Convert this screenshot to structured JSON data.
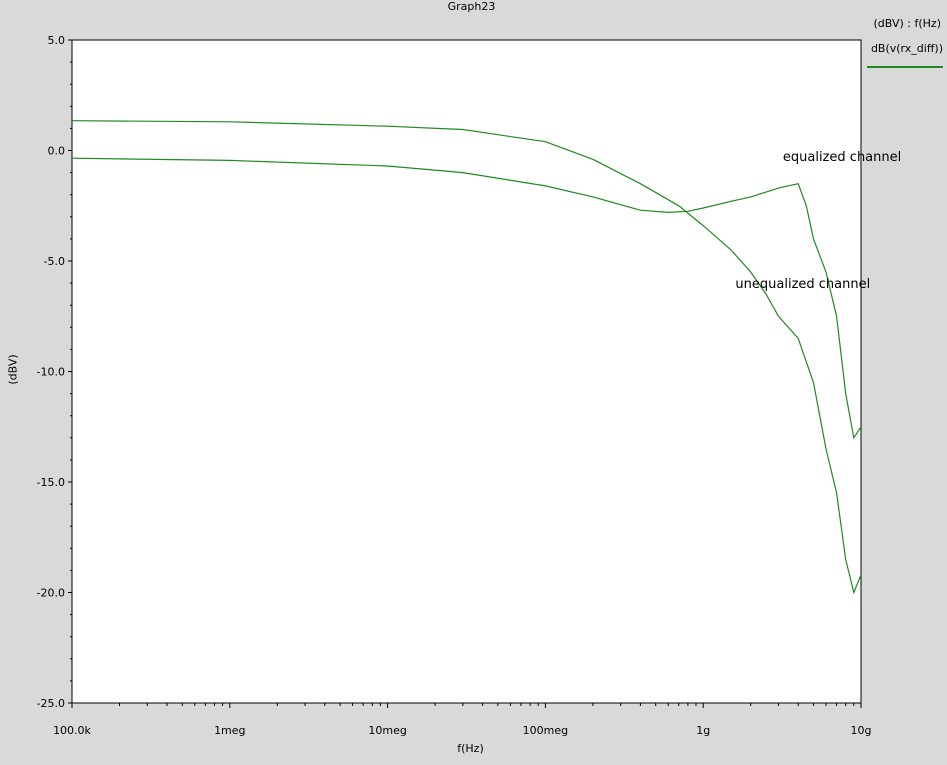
{
  "header": {
    "title": "Graph23"
  },
  "legend": {
    "axis_label": "(dBV) : f(Hz)",
    "item": "dB(v(rx_diff))"
  },
  "colors": {
    "trace": "#1f8a1f",
    "plot_bg": "#ffffff",
    "window_bg": "#d9d9d9"
  },
  "chart_data": {
    "type": "line",
    "title": "Graph23",
    "xlabel": "f(Hz)",
    "ylabel": "(dBV)",
    "x_scale": "log",
    "xlim": [
      100000,
      10000000000
    ],
    "ylim": [
      -25,
      5
    ],
    "x_ticks": [
      {
        "value": 100000,
        "label": "100.0k"
      },
      {
        "value": 1000000,
        "label": "1meg"
      },
      {
        "value": 10000000,
        "label": "10meg"
      },
      {
        "value": 100000000,
        "label": "100meg"
      },
      {
        "value": 1000000000,
        "label": "1g"
      },
      {
        "value": 10000000000,
        "label": "10g"
      }
    ],
    "y_ticks": [
      {
        "value": 5,
        "label": "5.0"
      },
      {
        "value": 0,
        "label": "0.0"
      },
      {
        "value": -5,
        "label": "-5.0"
      },
      {
        "value": -10,
        "label": "-10.0"
      },
      {
        "value": -15,
        "label": "-15.0"
      },
      {
        "value": -20,
        "label": "-20.0"
      },
      {
        "value": -25,
        "label": "-25.0"
      }
    ],
    "grid": false,
    "series": [
      {
        "name": "dB(v(rx_diff))",
        "points": [
          [
            100000,
            1.35
          ],
          [
            1000000,
            1.3
          ],
          [
            10000000,
            1.1
          ],
          [
            30000000,
            0.95
          ],
          [
            100000000,
            0.4
          ],
          [
            200000000,
            -0.4
          ],
          [
            400000000,
            -1.5
          ],
          [
            700000000,
            -2.5
          ],
          [
            1000000000,
            -3.4
          ],
          [
            1500000000,
            -4.5
          ],
          [
            2000000000,
            -5.5
          ],
          [
            2500000000,
            -6.5
          ],
          [
            3000000000,
            -7.5
          ],
          [
            4000000000,
            -8.5
          ],
          [
            5000000000,
            -10.5
          ],
          [
            6000000000,
            -13.5
          ],
          [
            7000000000,
            -15.5
          ],
          [
            8000000000,
            -18.5
          ],
          [
            9000000000,
            -20
          ],
          [
            10000000000,
            -19.2
          ]
        ]
      },
      {
        "name": "dB(v(rx_diff))",
        "points": [
          [
            100000,
            -0.35
          ],
          [
            1000000,
            -0.45
          ],
          [
            10000000,
            -0.7
          ],
          [
            30000000,
            -1.0
          ],
          [
            100000000,
            -1.6
          ],
          [
            200000000,
            -2.1
          ],
          [
            400000000,
            -2.7
          ],
          [
            600000000,
            -2.8
          ],
          [
            800000000,
            -2.75
          ],
          [
            1000000000,
            -2.6
          ],
          [
            1500000000,
            -2.3
          ],
          [
            2000000000,
            -2.1
          ],
          [
            3000000000,
            -1.7
          ],
          [
            4000000000,
            -1.5
          ],
          [
            4500000000,
            -2.5
          ],
          [
            5000000000,
            -4.0
          ],
          [
            6000000000,
            -5.5
          ],
          [
            7000000000,
            -7.5
          ],
          [
            8000000000,
            -11
          ],
          [
            9000000000,
            -13
          ],
          [
            10000000000,
            -12.5
          ]
        ]
      }
    ],
    "annotations": [
      {
        "text": "equalized channel",
        "x": 3200000000,
        "y": -0.35
      },
      {
        "text": "unequalized channel",
        "x": 1600000000,
        "y": -6.1
      }
    ]
  }
}
